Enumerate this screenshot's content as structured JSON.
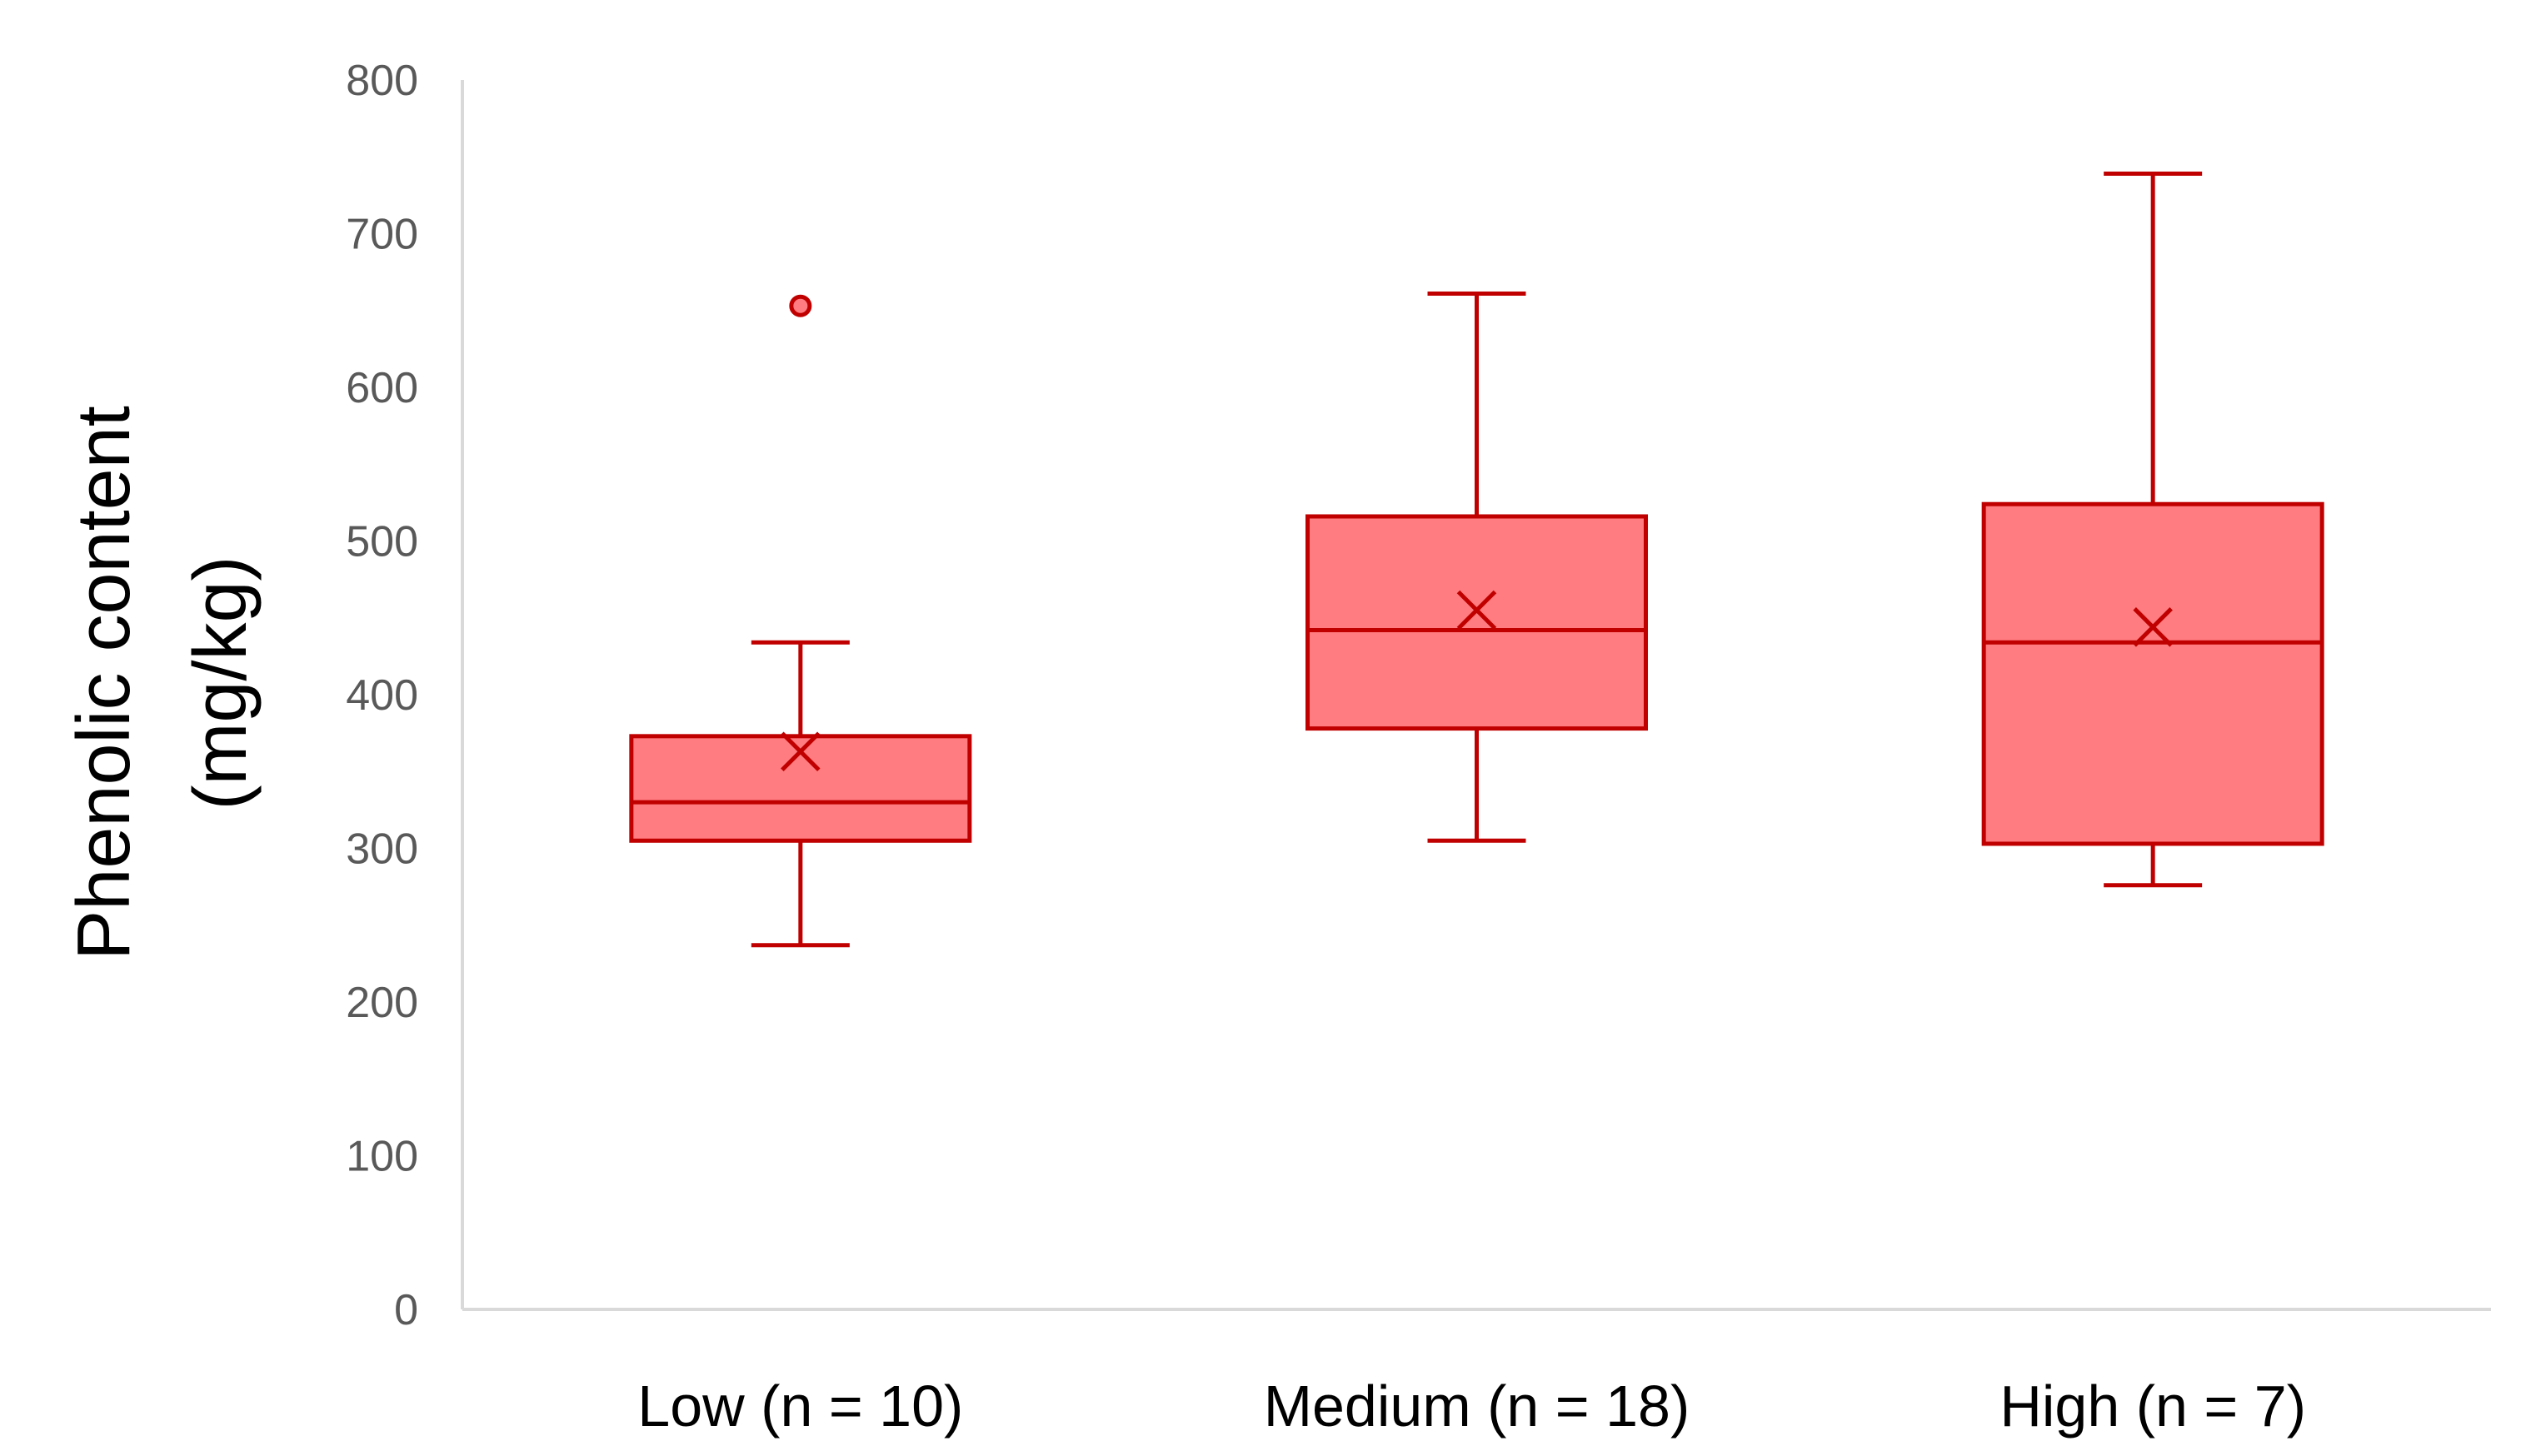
{
  "chart_data": {
    "type": "box",
    "ylabel_lines": [
      "Phenolic content",
      "(mg/kg)"
    ],
    "ylim": [
      0,
      800
    ],
    "yticks": [
      0,
      100,
      200,
      300,
      400,
      500,
      600,
      700,
      800
    ],
    "grid": false,
    "categories": [
      "Low (n = 10)",
      "Medium (n = 18)",
      "High (n = 7)"
    ],
    "boxes": [
      {
        "category": "Low (n = 10)",
        "min": 237,
        "q1": 305,
        "median": 330,
        "q3": 373,
        "max": 434,
        "mean": 363,
        "outliers": [
          653
        ]
      },
      {
        "category": "Medium (n = 18)",
        "min": 305,
        "q1": 378,
        "median": 442,
        "q3": 516,
        "max": 661,
        "mean": 455,
        "outliers": []
      },
      {
        "category": "High (n = 7)",
        "min": 276,
        "q1": 303,
        "median": 434,
        "q3": 524,
        "max": 739,
        "mean": 444,
        "outliers": []
      }
    ],
    "colors": {
      "box_fill": "#ff7c80",
      "box_stroke": "#c00000",
      "axis": "#d9d9d9"
    }
  }
}
